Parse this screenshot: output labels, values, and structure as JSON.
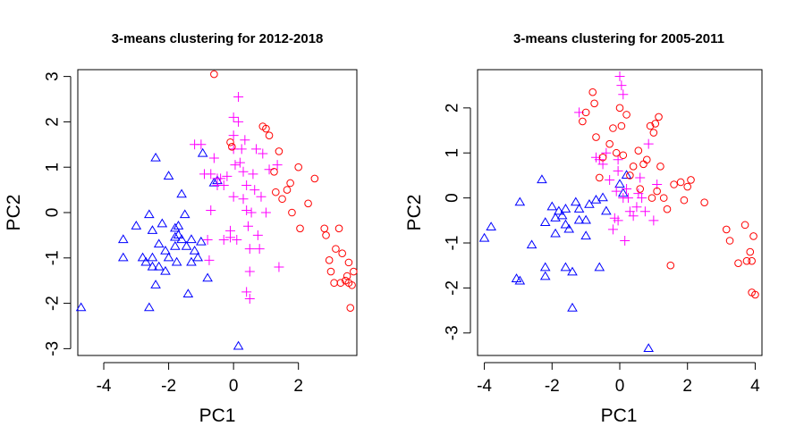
{
  "chart_data": [
    {
      "type": "scatter",
      "title": "3-means clustering for 2012-2018",
      "xlabel": "PC1",
      "ylabel": "PC2",
      "xlim": [
        -4.8,
        3.8
      ],
      "ylim": [
        -3.15,
        3.15
      ],
      "xticks": [
        "-4",
        "-2",
        "0",
        "2"
      ],
      "yticks": [
        "-3",
        "-2",
        "-1",
        "0",
        "1",
        "2",
        "3"
      ],
      "grid": false,
      "series": [
        {
          "marker": "triangle",
          "color": "#0000ff",
          "points": [
            [
              -4.7,
              -2.1
            ],
            [
              -3.4,
              -0.6
            ],
            [
              -3.4,
              -1.0
            ],
            [
              -3.0,
              -0.3
            ],
            [
              -2.8,
              -1.0
            ],
            [
              -2.7,
              -1.1
            ],
            [
              -2.6,
              -2.1
            ],
            [
              -2.6,
              -0.05
            ],
            [
              -2.5,
              -0.4
            ],
            [
              -2.5,
              -1.0
            ],
            [
              -2.5,
              -1.2
            ],
            [
              -2.4,
              -1.6
            ],
            [
              -2.4,
              1.2
            ],
            [
              -2.3,
              -0.7
            ],
            [
              -2.3,
              -1.2
            ],
            [
              -2.2,
              -0.25
            ],
            [
              -2.1,
              -0.85
            ],
            [
              -2.1,
              -1.3
            ],
            [
              -2.0,
              -1.0
            ],
            [
              -2.0,
              0.8
            ],
            [
              -1.8,
              -0.35
            ],
            [
              -1.8,
              -0.55
            ],
            [
              -1.8,
              -0.75
            ],
            [
              -1.75,
              -1.1
            ],
            [
              -1.7,
              -0.3
            ],
            [
              -1.7,
              -0.5
            ],
            [
              -1.6,
              -0.6
            ],
            [
              -1.6,
              0.4
            ],
            [
              -1.5,
              -0.05
            ],
            [
              -1.45,
              -0.75
            ],
            [
              -1.4,
              -1.8
            ],
            [
              -1.3,
              -0.6
            ],
            [
              -1.3,
              -1.1
            ],
            [
              -1.2,
              -0.85
            ],
            [
              -1.1,
              -1.0
            ],
            [
              -1.0,
              -0.65
            ],
            [
              -0.95,
              1.3
            ],
            [
              -0.8,
              -1.45
            ],
            [
              -0.6,
              0.65
            ],
            [
              -0.5,
              0.7
            ],
            [
              0.15,
              -2.95
            ]
          ]
        },
        {
          "marker": "plus",
          "color": "#ff00ff",
          "points": [
            [
              -1.2,
              1.5
            ],
            [
              -1.0,
              1.5
            ],
            [
              -0.9,
              0.85
            ],
            [
              -0.8,
              -0.6
            ],
            [
              -0.75,
              -1.05
            ],
            [
              -0.7,
              0.85
            ],
            [
              -0.7,
              0.05
            ],
            [
              -0.6,
              1.2
            ],
            [
              -0.5,
              0.75
            ],
            [
              -0.5,
              0.6
            ],
            [
              -0.4,
              0.75
            ],
            [
              -0.3,
              0.6
            ],
            [
              -0.3,
              -0.6
            ],
            [
              -0.2,
              0.8
            ],
            [
              -0.1,
              -0.4
            ],
            [
              -0.1,
              -0.55
            ],
            [
              0.0,
              2.1
            ],
            [
              0.0,
              1.7
            ],
            [
              0.0,
              1.4
            ],
            [
              0.0,
              0.35
            ],
            [
              0.05,
              1.05
            ],
            [
              0.1,
              -0.6
            ],
            [
              0.15,
              2.55
            ],
            [
              0.15,
              2.0
            ],
            [
              0.2,
              1.1
            ],
            [
              0.25,
              1.4
            ],
            [
              0.3,
              0.9
            ],
            [
              0.3,
              0.3
            ],
            [
              0.35,
              1.6
            ],
            [
              0.4,
              0.6
            ],
            [
              0.4,
              0.05
            ],
            [
              0.45,
              -0.3
            ],
            [
              0.5,
              -0.8
            ],
            [
              0.5,
              -1.3
            ],
            [
              0.5,
              -1.9
            ],
            [
              0.55,
              0.0
            ],
            [
              0.6,
              0.85
            ],
            [
              0.65,
              0.5
            ],
            [
              0.7,
              1.4
            ],
            [
              0.75,
              -0.5
            ],
            [
              0.8,
              -0.8
            ],
            [
              0.85,
              0.35
            ],
            [
              0.9,
              1.3
            ],
            [
              1.0,
              0.0
            ],
            [
              1.1,
              0.95
            ],
            [
              1.35,
              1.05
            ],
            [
              1.4,
              -1.2
            ],
            [
              0.4,
              -1.75
            ]
          ]
        },
        {
          "marker": "circle",
          "color": "#ff0000",
          "points": [
            [
              -0.6,
              3.05
            ],
            [
              -0.1,
              1.55
            ],
            [
              -0.05,
              1.45
            ],
            [
              0.9,
              1.9
            ],
            [
              1.0,
              1.85
            ],
            [
              1.1,
              1.7
            ],
            [
              1.25,
              0.9
            ],
            [
              1.3,
              0.45
            ],
            [
              1.4,
              1.35
            ],
            [
              1.5,
              0.3
            ],
            [
              1.65,
              0.5
            ],
            [
              1.75,
              0.65
            ],
            [
              1.8,
              0.0
            ],
            [
              2.0,
              1.0
            ],
            [
              2.05,
              -0.35
            ],
            [
              2.3,
              0.2
            ],
            [
              2.5,
              0.75
            ],
            [
              2.8,
              -0.35
            ],
            [
              2.85,
              -0.5
            ],
            [
              2.95,
              -1.05
            ],
            [
              3.0,
              -1.3
            ],
            [
              3.1,
              -1.55
            ],
            [
              3.15,
              -0.8
            ],
            [
              3.25,
              -0.35
            ],
            [
              3.3,
              -1.55
            ],
            [
              3.35,
              -0.9
            ],
            [
              3.45,
              -1.5
            ],
            [
              3.5,
              -1.4
            ],
            [
              3.55,
              -1.55
            ],
            [
              3.55,
              -1.1
            ],
            [
              3.6,
              -2.1
            ],
            [
              3.65,
              -1.6
            ],
            [
              3.7,
              -1.3
            ]
          ]
        }
      ]
    },
    {
      "type": "scatter",
      "title": "3-means clustering for 2005-2011",
      "xlabel": "PC1",
      "ylabel": "PC2",
      "xlim": [
        -4.2,
        4.2
      ],
      "ylim": [
        -3.5,
        2.85
      ],
      "xticks": [
        "-4",
        "-2",
        "0",
        "2",
        "4"
      ],
      "yticks": [
        "-3",
        "-2",
        "-1",
        "0",
        "1",
        "2"
      ],
      "grid": false,
      "series": [
        {
          "marker": "triangle",
          "color": "#0000ff",
          "points": [
            [
              -4.0,
              -0.9
            ],
            [
              -3.8,
              -0.65
            ],
            [
              -3.05,
              -1.8
            ],
            [
              -2.95,
              -1.85
            ],
            [
              -2.95,
              -0.1
            ],
            [
              -2.6,
              -1.05
            ],
            [
              -2.3,
              0.4
            ],
            [
              -2.2,
              -1.55
            ],
            [
              -2.2,
              -1.75
            ],
            [
              -2.2,
              -0.55
            ],
            [
              -2.0,
              -0.2
            ],
            [
              -1.9,
              -0.45
            ],
            [
              -1.9,
              -0.8
            ],
            [
              -1.8,
              -0.3
            ],
            [
              -1.7,
              -0.4
            ],
            [
              -1.6,
              -0.25
            ],
            [
              -1.6,
              -0.6
            ],
            [
              -1.6,
              -1.55
            ],
            [
              -1.5,
              -0.7
            ],
            [
              -1.4,
              -1.65
            ],
            [
              -1.4,
              -2.45
            ],
            [
              -1.3,
              -0.1
            ],
            [
              -1.2,
              -0.5
            ],
            [
              -1.2,
              -0.25
            ],
            [
              -1.0,
              -0.85
            ],
            [
              -1.0,
              -0.5
            ],
            [
              -0.9,
              -0.15
            ],
            [
              -0.7,
              -0.05
            ],
            [
              -0.6,
              -1.55
            ],
            [
              -0.5,
              0.0
            ],
            [
              -0.4,
              -0.3
            ],
            [
              0.0,
              0.3
            ],
            [
              0.1,
              0.1
            ],
            [
              0.2,
              0.5
            ],
            [
              0.85,
              -3.35
            ]
          ]
        },
        {
          "marker": "plus",
          "color": "#ff00ff",
          "points": [
            [
              -1.2,
              1.9
            ],
            [
              -0.7,
              0.9
            ],
            [
              -0.6,
              0.85
            ],
            [
              -0.5,
              0.75
            ],
            [
              -0.4,
              1.0
            ],
            [
              -0.3,
              0.4
            ],
            [
              -0.2,
              -0.7
            ],
            [
              -0.15,
              -0.45
            ],
            [
              -0.1,
              0.15
            ],
            [
              -0.05,
              -0.5
            ],
            [
              -0.05,
              0.6
            ],
            [
              -0.05,
              0.85
            ],
            [
              0.0,
              2.7
            ],
            [
              0.05,
              2.5
            ],
            [
              0.1,
              2.3
            ],
            [
              0.1,
              0.0
            ],
            [
              0.15,
              -0.95
            ],
            [
              0.2,
              0.2
            ],
            [
              0.25,
              0.0
            ],
            [
              0.3,
              -0.3
            ],
            [
              0.4,
              -0.4
            ],
            [
              0.5,
              -0.2
            ],
            [
              0.55,
              0.1
            ],
            [
              0.6,
              0.45
            ],
            [
              0.65,
              0.0
            ],
            [
              0.75,
              -0.3
            ],
            [
              0.85,
              1.2
            ],
            [
              1.0,
              -0.5
            ],
            [
              1.1,
              0.3
            ]
          ]
        },
        {
          "marker": "circle",
          "color": "#ff0000",
          "points": [
            [
              -1.1,
              1.7
            ],
            [
              -1.0,
              1.9
            ],
            [
              -0.8,
              2.35
            ],
            [
              -0.75,
              2.1
            ],
            [
              -0.7,
              1.35
            ],
            [
              -0.6,
              0.45
            ],
            [
              -0.5,
              0.9
            ],
            [
              -0.3,
              1.2
            ],
            [
              -0.2,
              1.55
            ],
            [
              -0.1,
              1.0
            ],
            [
              0.0,
              2.0
            ],
            [
              0.05,
              1.6
            ],
            [
              0.1,
              0.95
            ],
            [
              0.2,
              1.85
            ],
            [
              0.3,
              0.5
            ],
            [
              0.4,
              0.7
            ],
            [
              0.55,
              1.05
            ],
            [
              0.6,
              0.2
            ],
            [
              0.7,
              0.75
            ],
            [
              0.8,
              0.85
            ],
            [
              0.9,
              1.6
            ],
            [
              0.95,
              0.0
            ],
            [
              1.0,
              1.45
            ],
            [
              1.05,
              1.65
            ],
            [
              1.1,
              0.15
            ],
            [
              1.15,
              1.8
            ],
            [
              1.2,
              0.7
            ],
            [
              1.3,
              0.0
            ],
            [
              1.4,
              -0.25
            ],
            [
              1.5,
              -1.5
            ],
            [
              1.6,
              0.3
            ],
            [
              1.8,
              0.35
            ],
            [
              1.9,
              -0.05
            ],
            [
              2.0,
              0.25
            ],
            [
              2.1,
              0.4
            ],
            [
              2.5,
              -0.1
            ],
            [
              3.15,
              -0.7
            ],
            [
              3.25,
              -0.95
            ],
            [
              3.5,
              -1.45
            ],
            [
              3.7,
              -0.6
            ],
            [
              3.75,
              -1.4
            ],
            [
              3.85,
              -1.2
            ],
            [
              3.9,
              -2.1
            ],
            [
              3.9,
              -1.4
            ],
            [
              3.95,
              -0.85
            ],
            [
              4.0,
              -2.15
            ]
          ]
        }
      ]
    }
  ]
}
